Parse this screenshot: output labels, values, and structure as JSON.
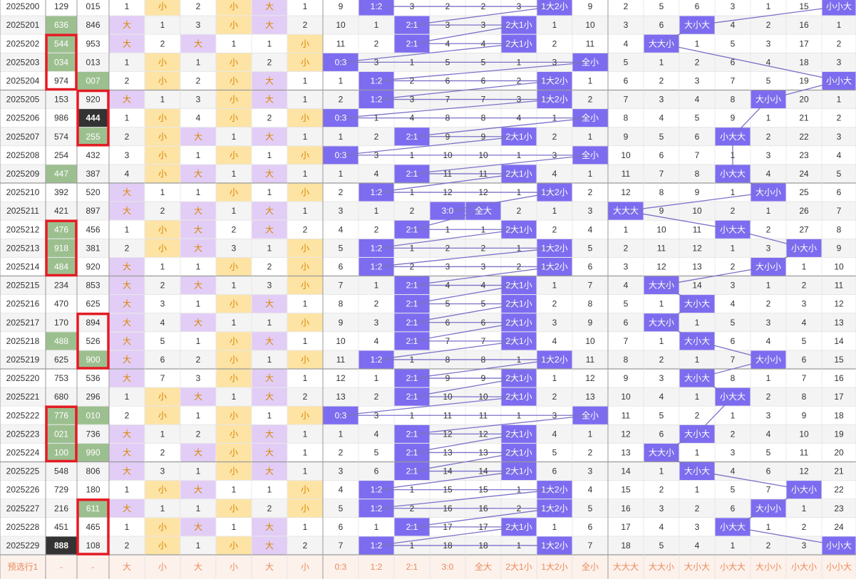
{
  "headers": [],
  "rows": [
    [
      "2025200",
      "129",
      "015",
      "1",
      "小",
      "2",
      "小",
      "大",
      "1",
      "9",
      "1:2",
      "3",
      "2",
      "2",
      "3",
      "1大2小",
      "9",
      "2",
      "5",
      "6",
      "3",
      "1",
      "15",
      "小小大"
    ],
    [
      "2025201",
      "636",
      "846",
      "大",
      "1",
      "3",
      "小",
      "大",
      "2",
      "10",
      "1",
      "2:1",
      "3",
      "3",
      "2大1小",
      "1",
      "10",
      "3",
      "6",
      "大小大",
      "4",
      "2",
      "16",
      "1"
    ],
    [
      "2025202",
      "544",
      "953",
      "大",
      "2",
      "大",
      "1",
      "1",
      "小",
      "11",
      "2",
      "2:1",
      "4",
      "4",
      "2大1小",
      "2",
      "11",
      "4",
      "大大小",
      "1",
      "5",
      "3",
      "17",
      "2"
    ],
    [
      "2025203",
      "034",
      "013",
      "1",
      "小",
      "1",
      "小",
      "2",
      "小",
      "0:3",
      "3",
      "1",
      "5",
      "5",
      "1",
      "3",
      "全小",
      "5",
      "1",
      "2",
      "6",
      "4",
      "18",
      "3"
    ],
    [
      "2025204",
      "974",
      "007",
      "2",
      "小",
      "2",
      "小",
      "大",
      "1",
      "1",
      "1:2",
      "2",
      "6",
      "6",
      "2",
      "1大2小",
      "1",
      "6",
      "2",
      "3",
      "7",
      "5",
      "19",
      "小小大"
    ],
    [
      "2025205",
      "153",
      "920",
      "大",
      "1",
      "3",
      "小",
      "大",
      "1",
      "2",
      "1:2",
      "3",
      "7",
      "7",
      "3",
      "1大2小",
      "2",
      "7",
      "3",
      "4",
      "8",
      "大小小",
      "20",
      "1"
    ],
    [
      "2025206",
      "986",
      "444",
      "1",
      "小",
      "4",
      "小",
      "2",
      "小",
      "0:3",
      "1",
      "4",
      "8",
      "8",
      "4",
      "1",
      "全小",
      "8",
      "4",
      "5",
      "9",
      "1",
      "21",
      "2"
    ],
    [
      "2025207",
      "574",
      "255",
      "2",
      "小",
      "大",
      "1",
      "大",
      "1",
      "1",
      "2",
      "2:1",
      "9",
      "9",
      "2大1小",
      "2",
      "1",
      "9",
      "5",
      "6",
      "小大大",
      "2",
      "22",
      "3"
    ],
    [
      "2025208",
      "254",
      "432",
      "3",
      "小",
      "1",
      "小",
      "1",
      "小",
      "0:3",
      "3",
      "1",
      "10",
      "10",
      "1",
      "3",
      "全小",
      "10",
      "6",
      "7",
      "1",
      "3",
      "23",
      "4"
    ],
    [
      "2025209",
      "447",
      "387",
      "4",
      "小",
      "大",
      "1",
      "大",
      "1",
      "1",
      "4",
      "2:1",
      "11",
      "11",
      "2大1小",
      "4",
      "1",
      "11",
      "7",
      "8",
      "小大大",
      "4",
      "24",
      "5"
    ],
    [
      "2025210",
      "392",
      "520",
      "大",
      "1",
      "1",
      "小",
      "1",
      "小",
      "2",
      "1:2",
      "1",
      "12",
      "12",
      "1",
      "1大2小",
      "2",
      "12",
      "8",
      "9",
      "1",
      "大小小",
      "25",
      "6"
    ],
    [
      "2025211",
      "421",
      "897",
      "大",
      "2",
      "大",
      "1",
      "大",
      "1",
      "3",
      "1",
      "2",
      "3:0",
      "全大",
      "2",
      "1",
      "3",
      "大大大",
      "9",
      "10",
      "2",
      "1",
      "26",
      "7"
    ],
    [
      "2025212",
      "476",
      "456",
      "1",
      "小",
      "大",
      "2",
      "大",
      "2",
      "4",
      "2",
      "2:1",
      "1",
      "1",
      "2大1小",
      "2",
      "4",
      "1",
      "10",
      "11",
      "小大大",
      "2",
      "27",
      "8"
    ],
    [
      "2025213",
      "918",
      "381",
      "2",
      "小",
      "大",
      "3",
      "1",
      "小",
      "5",
      "1:2",
      "1",
      "2",
      "2",
      "1",
      "1大2小",
      "5",
      "2",
      "11",
      "12",
      "1",
      "3",
      "小大小",
      "9"
    ],
    [
      "2025214",
      "484",
      "920",
      "大",
      "1",
      "1",
      "小",
      "2",
      "小",
      "6",
      "1:2",
      "2",
      "3",
      "3",
      "2",
      "1大2小",
      "6",
      "3",
      "12",
      "13",
      "2",
      "大小小",
      "1",
      "10"
    ],
    [
      "2025215",
      "234",
      "853",
      "大",
      "2",
      "大",
      "1",
      "3",
      "小",
      "7",
      "1",
      "2:1",
      "4",
      "4",
      "2大1小",
      "1",
      "7",
      "4",
      "大大小",
      "14",
      "3",
      "1",
      "2",
      "11"
    ],
    [
      "2025216",
      "470",
      "625",
      "大",
      "3",
      "1",
      "小",
      "大",
      "1",
      "8",
      "2",
      "2:1",
      "5",
      "5",
      "2大1小",
      "2",
      "8",
      "5",
      "1",
      "大小大",
      "4",
      "2",
      "3",
      "12"
    ],
    [
      "2025217",
      "170",
      "894",
      "大",
      "4",
      "大",
      "1",
      "1",
      "小",
      "9",
      "3",
      "2:1",
      "6",
      "6",
      "2大1小",
      "3",
      "9",
      "6",
      "大大小",
      "1",
      "5",
      "3",
      "4",
      "13"
    ],
    [
      "2025218",
      "488",
      "526",
      "大",
      "5",
      "1",
      "小",
      "大",
      "1",
      "10",
      "4",
      "2:1",
      "7",
      "7",
      "2大1小",
      "4",
      "10",
      "7",
      "1",
      "大小大",
      "6",
      "4",
      "5",
      "14"
    ],
    [
      "2025219",
      "625",
      "900",
      "大",
      "6",
      "2",
      "小",
      "1",
      "小",
      "11",
      "1:2",
      "1",
      "8",
      "8",
      "1",
      "1大2小",
      "11",
      "8",
      "2",
      "1",
      "7",
      "大小小",
      "6",
      "15"
    ],
    [
      "2025220",
      "753",
      "536",
      "大",
      "7",
      "3",
      "小",
      "大",
      "1",
      "12",
      "1",
      "2:1",
      "9",
      "9",
      "2大1小",
      "1",
      "12",
      "9",
      "3",
      "大小大",
      "8",
      "1",
      "7",
      "16"
    ],
    [
      "2025221",
      "680",
      "296",
      "1",
      "小",
      "大",
      "1",
      "大",
      "2",
      "13",
      "2",
      "2:1",
      "10",
      "10",
      "2大1小",
      "2",
      "13",
      "10",
      "4",
      "1",
      "小大大",
      "2",
      "8",
      "17"
    ],
    [
      "2025222",
      "776",
      "010",
      "2",
      "小",
      "1",
      "小",
      "1",
      "小",
      "0:3",
      "3",
      "1",
      "11",
      "11",
      "1",
      "3",
      "全小",
      "11",
      "5",
      "2",
      "1",
      "3",
      "9",
      "18"
    ],
    [
      "2025223",
      "021",
      "736",
      "大",
      "1",
      "2",
      "小",
      "大",
      "1",
      "1",
      "4",
      "2:1",
      "12",
      "12",
      "2大1小",
      "4",
      "1",
      "12",
      "6",
      "大小大",
      "2",
      "4",
      "10",
      "19"
    ],
    [
      "2025224",
      "100",
      "990",
      "大",
      "2",
      "大",
      "小",
      "大",
      "1",
      "2",
      "5",
      "2:1",
      "13",
      "13",
      "2大1小",
      "5",
      "2",
      "13",
      "大大小",
      "1",
      "3",
      "5",
      "11",
      "20"
    ],
    [
      "2025225",
      "548",
      "806",
      "大",
      "3",
      "1",
      "小",
      "大",
      "1",
      "3",
      "6",
      "2:1",
      "14",
      "14",
      "2大1小",
      "6",
      "3",
      "14",
      "1",
      "大小大",
      "4",
      "6",
      "12",
      "21"
    ],
    [
      "2025226",
      "729",
      "180",
      "1",
      "小",
      "大",
      "1",
      "1",
      "小",
      "4",
      "1:2",
      "1",
      "15",
      "15",
      "1",
      "1大2小",
      "4",
      "15",
      "2",
      "1",
      "5",
      "7",
      "小大小",
      "22"
    ],
    [
      "2025227",
      "216",
      "611",
      "大",
      "1",
      "1",
      "小",
      "2",
      "小",
      "5",
      "1:2",
      "2",
      "16",
      "16",
      "2",
      "1大2小",
      "5",
      "16",
      "3",
      "2",
      "6",
      "大小小",
      "1",
      "23"
    ],
    [
      "2025228",
      "451",
      "465",
      "1",
      "小",
      "大",
      "1",
      "大",
      "1",
      "6",
      "1",
      "2:1",
      "17",
      "17",
      "2大1小",
      "1",
      "6",
      "17",
      "4",
      "3",
      "小大大",
      "1",
      "2",
      "24"
    ],
    [
      "2025229",
      "888",
      "108",
      "2",
      "小",
      "1",
      "小",
      "大",
      "2",
      "7",
      "1:2",
      "1",
      "18",
      "18",
      "1",
      "1大2小",
      "7",
      "18",
      "5",
      "4",
      "1",
      "2",
      "3",
      "小小大"
    ]
  ],
  "footer": [
    "预选行1",
    "-",
    "-",
    "大",
    "小",
    "大",
    "小",
    "大",
    "小",
    "0:3",
    "1:2",
    "2:1",
    "3:0",
    "全大",
    "2大1小",
    "1大2小",
    "全小",
    "大大大",
    "大大小",
    "大小大",
    "小大大",
    "大小小",
    "小大小",
    "小小大"
  ],
  "highlights": {
    "green_cells": [
      [
        1,
        1
      ],
      [
        2,
        1
      ],
      [
        3,
        1
      ],
      [
        4,
        2
      ],
      [
        7,
        2
      ],
      [
        9,
        1
      ],
      [
        12,
        1
      ],
      [
        13,
        1
      ],
      [
        14,
        1
      ],
      [
        18,
        1
      ],
      [
        19,
        2
      ],
      [
        22,
        1
      ],
      [
        22,
        2
      ],
      [
        23,
        1
      ],
      [
        24,
        1
      ],
      [
        24,
        2
      ],
      [
        27,
        2
      ]
    ],
    "dark_cells": [
      [
        6,
        2
      ],
      [
        29,
        1
      ]
    ],
    "red_boxes": [
      {
        "col": 1,
        "from_row": 2,
        "to_row": 4
      },
      {
        "col": 2,
        "from_row": 5,
        "to_row": 7
      },
      {
        "col": 1,
        "from_row": 12,
        "to_row": 14
      },
      {
        "col": 2,
        "from_row": 17,
        "to_row": 19
      },
      {
        "col": 1,
        "from_row": 22,
        "to_row": 24
      },
      {
        "col": 2,
        "from_row": 27,
        "to_row": 29
      }
    ]
  },
  "colors": {
    "text": "#333333",
    "alt_row": "#f4f4f4",
    "purple_light": "#e2cdf6",
    "orange_light": "#fde3a4",
    "orange_text": "#d98500",
    "violet": "#7d6cf0",
    "green_cell": "#9cbf8f",
    "dark_cell": "#333333",
    "red_box": "#e41b23",
    "line": "#7a72c9",
    "footer_bg": "#fdf1ec",
    "footer_text": "#e88b5a",
    "grid": "#dddddd",
    "group_divider": "#9a9a9a"
  }
}
